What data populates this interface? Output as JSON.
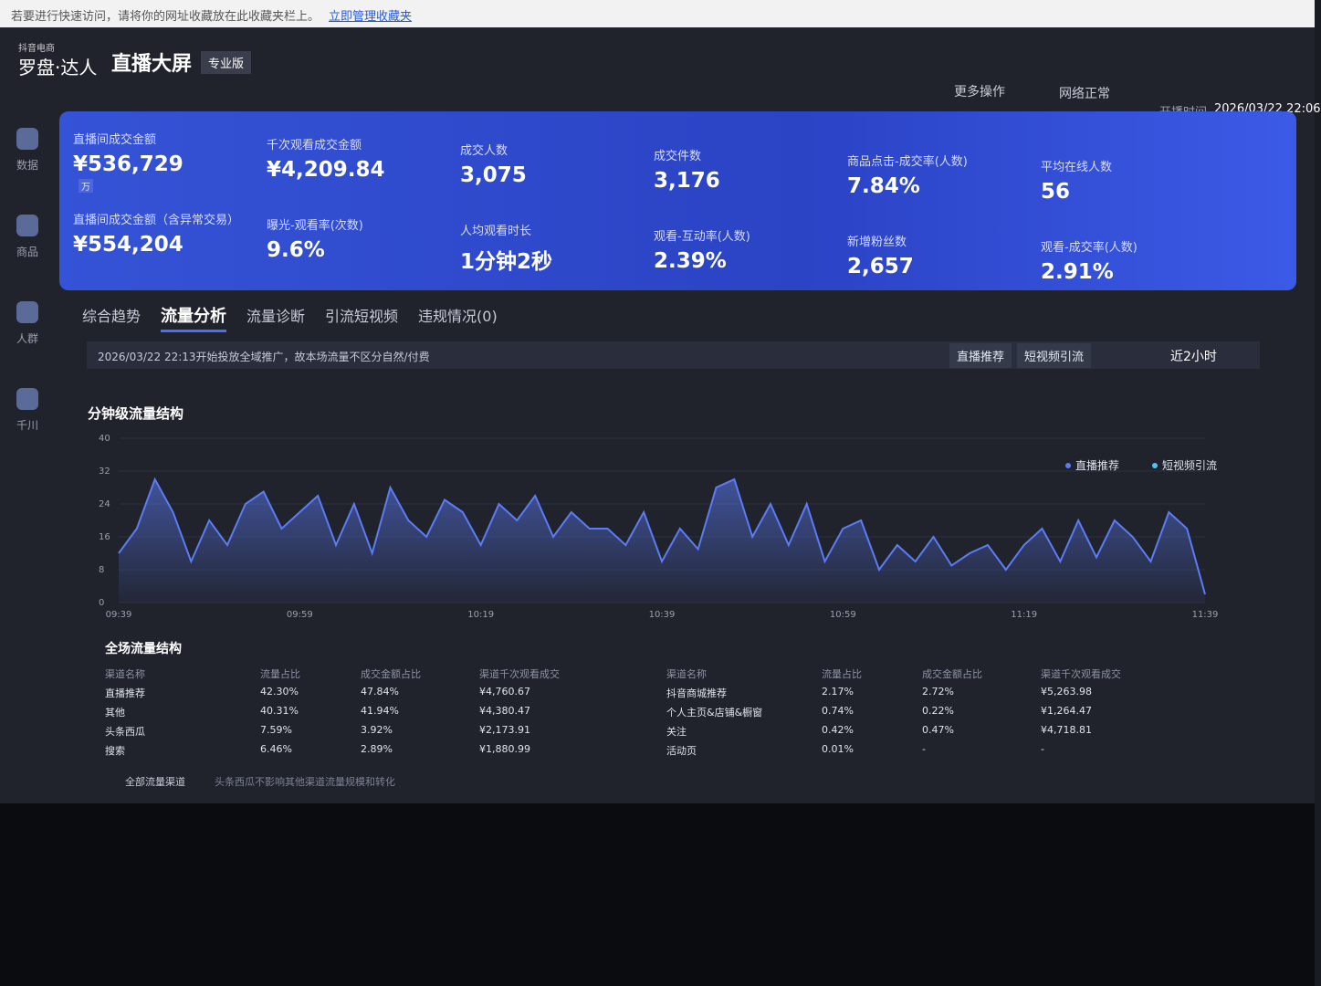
{
  "browser_bar": {
    "text": "若要进行快速访问，请将你的网址收藏放在此收藏夹栏上。",
    "link": "立即管理收藏夹"
  },
  "header": {
    "brand_small": "抖音电商",
    "brand": "罗盘·达人",
    "title": "直播大屏",
    "edition": "专业版",
    "more": "更多操作",
    "status": "网络正常",
    "start_label": "开播时间",
    "start_time": "2026/03/22 22:06"
  },
  "sidebar": [
    "数据",
    "商品",
    "人群",
    "千川"
  ],
  "metrics": [
    {
      "label": "直播间成交金额",
      "value": "¥536,729",
      "unit": "万"
    },
    {
      "label": "直播间成交金额（含异常交易）",
      "value": "¥554,204"
    },
    {
      "label": "千次观看成交金额",
      "value": "¥4,209.84"
    },
    {
      "label": "曝光-观看率(次数)",
      "value": "9.6%"
    },
    {
      "label": "成交人数",
      "value": "3,075"
    },
    {
      "label": "人均观看时长",
      "value": "1分钟2秒"
    },
    {
      "label": "成交件数",
      "value": "3,176"
    },
    {
      "label": "观看-互动率(人数)",
      "value": "2.39%"
    },
    {
      "label": "商品点击-成交率(人数)",
      "value": "7.84%"
    },
    {
      "label": "新增粉丝数",
      "value": "2,657"
    },
    {
      "label": "平均在线人数",
      "value": "56"
    },
    {
      "label": "观看-成交率(人数)",
      "value": "2.91%"
    }
  ],
  "tabs": [
    "综合趋势",
    "流量分析",
    "流量诊断",
    "引流短视频",
    "违规情况(0)"
  ],
  "active_tab": 1,
  "notice": "2026/03/22 22:13开始投放全域推广，故本场流量不区分自然/付费",
  "filters": [
    "直播推荐",
    "短视频引流"
  ],
  "range": "近2小时",
  "chart_data": {
    "type": "area",
    "title": "分钟级流量结构",
    "categories": [
      "09:39",
      null,
      null,
      null,
      null,
      null,
      null,
      null,
      null,
      null,
      "09:59",
      null,
      null,
      null,
      null,
      null,
      null,
      null,
      null,
      null,
      "10:19",
      null,
      null,
      null,
      null,
      null,
      null,
      null,
      null,
      null,
      "10:39",
      null,
      null,
      null,
      null,
      null,
      null,
      null,
      null,
      null,
      "10:59",
      null,
      null,
      null,
      null,
      null,
      null,
      null,
      null,
      null,
      "11:19",
      null,
      null,
      null,
      null,
      null,
      null,
      null,
      null,
      null,
      "11:39"
    ],
    "series": [
      {
        "name": "直播推荐",
        "color": "#5b7cf5",
        "values": [
          12,
          18,
          30,
          22,
          10,
          20,
          14,
          24,
          27,
          18,
          22,
          26,
          14,
          24,
          12,
          28,
          20,
          16,
          25,
          22,
          14,
          24,
          20,
          26,
          16,
          22,
          18,
          18,
          14,
          22,
          10,
          18,
          13,
          28,
          30,
          16,
          24,
          14,
          24,
          10,
          18,
          20,
          8,
          14,
          10,
          16,
          9,
          12,
          14,
          8,
          14,
          18,
          10,
          20,
          11,
          20,
          16,
          10,
          22,
          18,
          2
        ]
      },
      {
        "name": "短视频引流",
        "color": "#4fc3f7",
        "values": [
          null,
          null,
          null,
          null,
          null,
          null,
          null,
          null,
          null,
          null,
          null,
          null,
          null,
          null,
          null,
          null,
          null,
          null,
          null,
          null,
          null,
          null,
          null,
          null,
          null,
          null,
          null,
          null,
          null,
          null,
          null,
          null,
          null,
          null,
          null,
          null,
          null,
          null,
          null,
          null,
          null,
          null,
          null,
          null,
          null,
          null,
          null,
          null,
          null,
          null,
          null,
          null,
          null,
          null,
          null,
          null,
          null,
          null,
          null,
          null,
          null
        ]
      }
    ],
    "ylim": [
      0,
      40
    ],
    "yticks": [
      0,
      8,
      16,
      24,
      32,
      40
    ],
    "legend": "top-right"
  },
  "table": {
    "title": "全场流量结构",
    "headers": [
      "渠道名称",
      "流量占比",
      "成交金额占比",
      "渠道千次观看成交"
    ],
    "left": [
      [
        "直播推荐",
        "42.30%",
        "47.84%",
        "¥4,760.67"
      ],
      [
        "其他",
        "40.31%",
        "41.94%",
        "¥4,380.47"
      ],
      [
        "头条西瓜",
        "7.59%",
        "3.92%",
        "¥2,173.91"
      ],
      [
        "搜索",
        "6.46%",
        "2.89%",
        "¥1,880.99"
      ]
    ],
    "right": [
      [
        "抖音商城推荐",
        "2.17%",
        "2.72%",
        "¥5,263.98"
      ],
      [
        "个人主页&店铺&橱窗",
        "0.74%",
        "0.22%",
        "¥1,264.47"
      ],
      [
        "关注",
        "0.42%",
        "0.47%",
        "¥4,718.81"
      ],
      [
        "活动页",
        "0.01%",
        "-",
        "-"
      ]
    ],
    "footer_link": "全部流量渠道",
    "footer_note": "头条西瓜不影响其他渠道流量规模和转化"
  }
}
